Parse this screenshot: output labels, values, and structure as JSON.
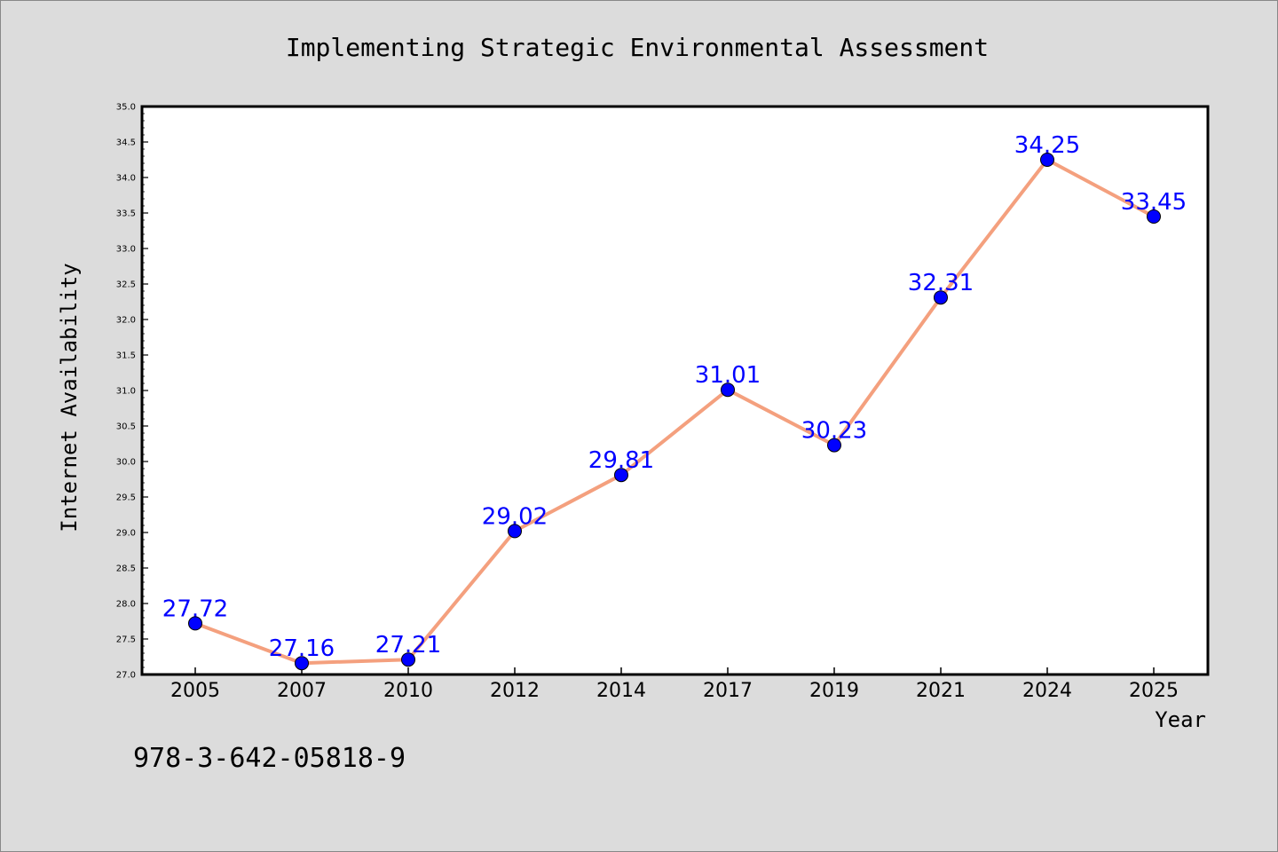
{
  "chart_data": {
    "type": "line",
    "title": "Implementing Strategic Environmental Assessment",
    "xlabel": "Year",
    "ylabel": "Internet Availability",
    "categories": [
      "2005",
      "2007",
      "2010",
      "2012",
      "2014",
      "2017",
      "2019",
      "2021",
      "2024",
      "2025"
    ],
    "series": [
      {
        "values": [
          27.72,
          27.16,
          27.21,
          29.02,
          29.81,
          31.01,
          30.23,
          32.31,
          34.25,
          33.45
        ]
      }
    ],
    "data_labels": [
      "27.72",
      "27.16",
      "27.21",
      "29.02",
      "29.81",
      "31.01",
      "30.23",
      "32.31",
      "34.25",
      "33.45"
    ],
    "yticks": [
      "27.0",
      "27.5",
      "28.0",
      "28.5",
      "29.0",
      "29.5",
      "30.0",
      "30.5",
      "31.0",
      "31.5",
      "32.0",
      "32.5",
      "33.0",
      "33.5",
      "34.0",
      "34.5",
      "35.0"
    ],
    "ylim": [
      27.0,
      35.0
    ],
    "grid": false,
    "legend": "none",
    "colors": {
      "line": "#f4a07e",
      "marker": "#0000ff",
      "label": "#0000ff",
      "background": "#dcdcdc",
      "plot_background": "#ffffff"
    }
  },
  "footer": {
    "isbn": "978-3-642-05818-9"
  }
}
